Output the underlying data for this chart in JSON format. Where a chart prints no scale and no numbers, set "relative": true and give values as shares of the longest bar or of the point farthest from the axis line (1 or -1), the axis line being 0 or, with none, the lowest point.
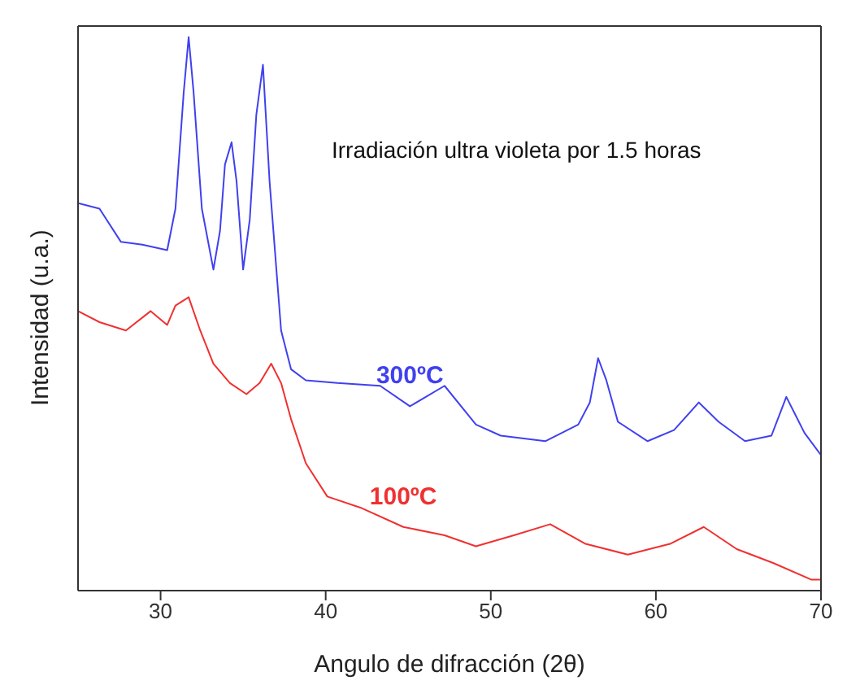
{
  "chart_data": {
    "type": "line",
    "xlabel": "Angulo de difracción (2θ)",
    "ylabel": "Intensidad (u.a.)",
    "annotations": [
      "Irradiación ultra violeta por 1.5 horas"
    ],
    "relative": true,
    "xlim": [
      25,
      70
    ],
    "xticks": [
      30,
      40,
      50,
      60,
      70
    ],
    "tick_labels": "x",
    "marker": "none",
    "line_style": "solid",
    "series": [
      {
        "name": "300ºC",
        "color": "#4040f0",
        "x": [
          25,
          26.3,
          27.6,
          28.9,
          30.4,
          30.9,
          31.4,
          31.7,
          32.0,
          32.5,
          33.2,
          33.6,
          33.9,
          34.3,
          34.6,
          35.0,
          35.4,
          35.8,
          36.2,
          36.6,
          37.3,
          37.9,
          38.8,
          40.7,
          43.3,
          45.1,
          47.2,
          49.1,
          50.6,
          53.3,
          55.3,
          56.0,
          56.5,
          57.0,
          57.7,
          59.5,
          61.1,
          62.6,
          63.8,
          65.4,
          67.0,
          67.9,
          69.0,
          70
        ],
        "values": [
          0.7,
          0.69,
          0.63,
          0.625,
          0.615,
          0.69,
          0.9,
          1.0,
          0.9,
          0.69,
          0.58,
          0.65,
          0.77,
          0.81,
          0.74,
          0.58,
          0.67,
          0.86,
          0.95,
          0.74,
          0.47,
          0.4,
          0.38,
          0.375,
          0.37,
          0.333,
          0.37,
          0.3,
          0.28,
          0.27,
          0.3,
          0.34,
          0.42,
          0.38,
          0.305,
          0.27,
          0.29,
          0.34,
          0.305,
          0.27,
          0.28,
          0.35,
          0.285,
          0.245
        ]
      },
      {
        "name": "100ºC",
        "color": "#f03030",
        "x": [
          25,
          26.3,
          27.9,
          29.4,
          30.4,
          30.9,
          31.7,
          32.4,
          33.2,
          34.2,
          35.2,
          36.0,
          36.7,
          37.3,
          37.9,
          38.8,
          40.1,
          42.1,
          44.7,
          47.2,
          49.1,
          51.4,
          53.6,
          55.7,
          58.3,
          60.9,
          62.9,
          64.9,
          67.1,
          69.4,
          70
        ],
        "values": [
          0.505,
          0.485,
          0.47,
          0.505,
          0.48,
          0.515,
          0.53,
          0.47,
          0.41,
          0.375,
          0.355,
          0.375,
          0.41,
          0.375,
          0.31,
          0.23,
          0.17,
          0.15,
          0.115,
          0.1,
          0.08,
          0.1,
          0.12,
          0.085,
          0.065,
          0.085,
          0.115,
          0.075,
          0.05,
          0.02,
          0.02
        ]
      }
    ]
  }
}
